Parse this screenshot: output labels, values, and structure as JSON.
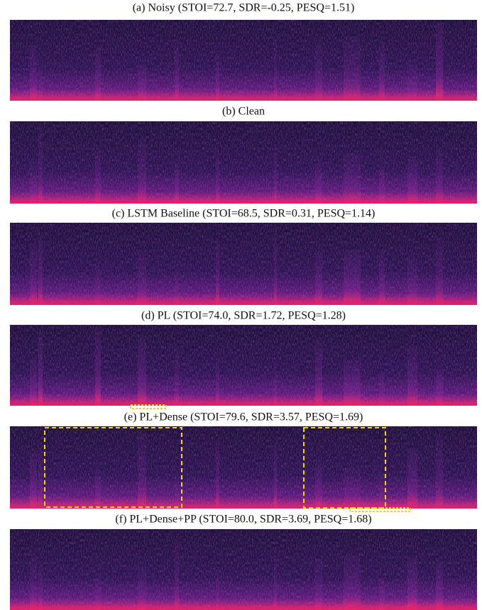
{
  "panels": [
    {
      "caption": "(a) Noisy (STOI=72.7, SDR=-0.25, PESQ=1.51)"
    },
    {
      "caption": "(b) Clean"
    },
    {
      "caption": "(c) LSTM Baseline (STOI=68.5, SDR=0.31, PESQ=1.14)"
    },
    {
      "caption": "(d) PL (STOI=74.0, SDR=1.72, PESQ=1.28)"
    },
    {
      "caption": "(e) PL+Dense (STOI=79.6, SDR=3.57, PESQ=1.69)"
    },
    {
      "caption": "(f) PL+Dense+PP (STOI=80.0, SDR=3.69, PESQ=1.68)"
    }
  ]
}
